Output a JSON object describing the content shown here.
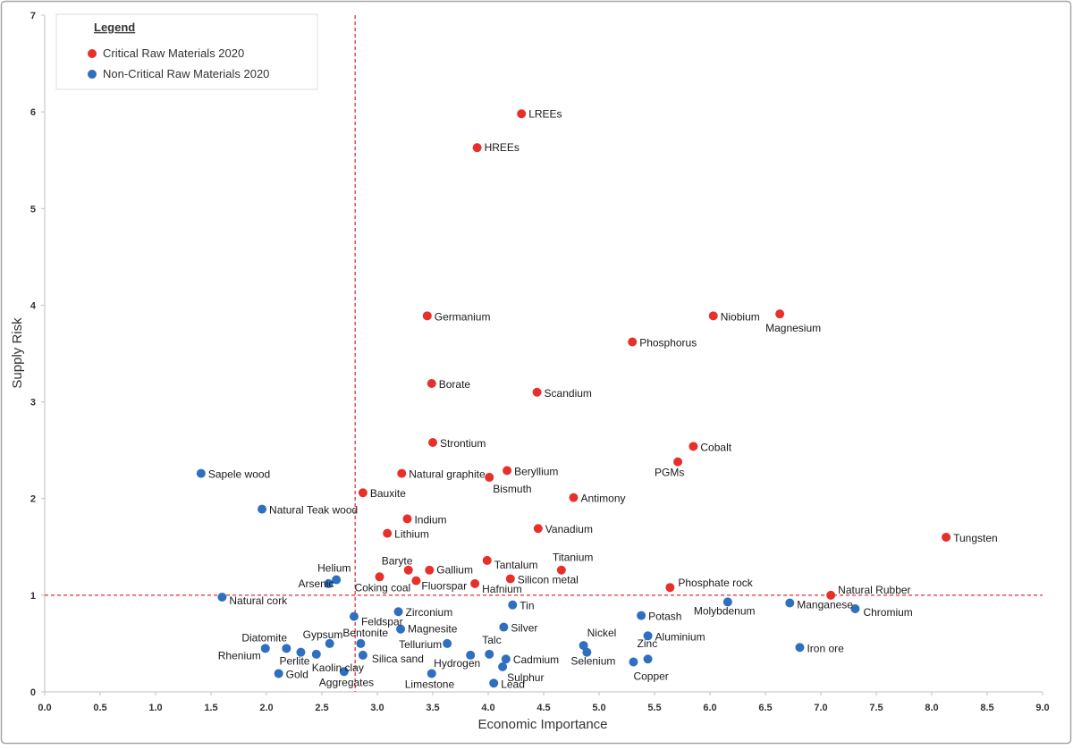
{
  "chart_data": {
    "type": "scatter",
    "title": "",
    "xlabel": "Economic Importance",
    "ylabel": "Supply Risk",
    "xlim": [
      0,
      9
    ],
    "ylim": [
      0,
      7
    ],
    "x_ticks": [
      "0.0",
      "0.5",
      "1.0",
      "1.5",
      "2.0",
      "2.5",
      "3.0",
      "3.5",
      "4.0",
      "4.5",
      "5.0",
      "5.5",
      "6.0",
      "6.5",
      "7.0",
      "7.5",
      "8.0",
      "8.5",
      "9.0"
    ],
    "y_ticks": [
      "0",
      "1",
      "2",
      "3",
      "4",
      "5",
      "6",
      "7"
    ],
    "thresholds": {
      "x": 2.8,
      "y": 1.0
    },
    "legend": {
      "title": "Legend",
      "placement": "top-left",
      "entries": [
        "Critical Raw Materials 2020",
        "Non-Critical Raw Materials 2020"
      ]
    },
    "colors": {
      "critical": "#e8302a",
      "non_critical": "#2e6fbf",
      "threshold": "#e04040",
      "frame": "#a6a6a6"
    },
    "series": [
      {
        "name": "Critical Raw Materials 2020",
        "points": [
          {
            "label": "LREEs",
            "x": 4.3,
            "y": 5.98
          },
          {
            "label": "HREEs",
            "x": 3.9,
            "y": 5.63
          },
          {
            "label": "Germanium",
            "x": 3.45,
            "y": 3.89
          },
          {
            "label": "Niobium",
            "x": 6.03,
            "y": 3.89
          },
          {
            "label": "Magnesium",
            "x": 6.63,
            "y": 3.91
          },
          {
            "label": "Phosphorus",
            "x": 5.3,
            "y": 3.62
          },
          {
            "label": "Borate",
            "x": 3.49,
            "y": 3.19
          },
          {
            "label": "Scandium",
            "x": 4.44,
            "y": 3.1
          },
          {
            "label": "Strontium",
            "x": 3.5,
            "y": 2.58
          },
          {
            "label": "Cobalt",
            "x": 5.85,
            "y": 2.54
          },
          {
            "label": "PGMs",
            "x": 5.71,
            "y": 2.38
          },
          {
            "label": "Beryllium",
            "x": 4.17,
            "y": 2.29
          },
          {
            "label": "Natural graphite",
            "x": 3.22,
            "y": 2.26
          },
          {
            "label": "Bismuth",
            "x": 4.01,
            "y": 2.22
          },
          {
            "label": "Bauxite",
            "x": 2.87,
            "y": 2.06
          },
          {
            "label": "Antimony",
            "x": 4.77,
            "y": 2.01
          },
          {
            "label": "Indium",
            "x": 3.27,
            "y": 1.79
          },
          {
            "label": "Vanadium",
            "x": 4.45,
            "y": 1.69
          },
          {
            "label": "Lithium",
            "x": 3.09,
            "y": 1.64
          },
          {
            "label": "Tungsten",
            "x": 8.13,
            "y": 1.6
          },
          {
            "label": "Tantalum",
            "x": 3.99,
            "y": 1.36
          },
          {
            "label": "Titanium",
            "x": 4.66,
            "y": 1.26
          },
          {
            "label": "Baryte",
            "x": 3.28,
            "y": 1.26
          },
          {
            "label": "Gallium",
            "x": 3.47,
            "y": 1.26
          },
          {
            "label": "Coking coal",
            "x": 3.02,
            "y": 1.19
          },
          {
            "label": "Fluorspar",
            "x": 3.35,
            "y": 1.15
          },
          {
            "label": "Silicon metal",
            "x": 4.2,
            "y": 1.17
          },
          {
            "label": "Hafnium",
            "x": 3.88,
            "y": 1.12
          },
          {
            "label": "Phosphate rock",
            "x": 5.64,
            "y": 1.08
          },
          {
            "label": "Natural Rubber",
            "x": 7.09,
            "y": 1.0
          }
        ]
      },
      {
        "name": "Non-Critical Raw Materials 2020",
        "points": [
          {
            "label": "Sapele wood",
            "x": 1.41,
            "y": 2.26
          },
          {
            "label": "Natural Teak wood",
            "x": 1.96,
            "y": 1.89
          },
          {
            "label": "Helium",
            "x": 2.63,
            "y": 1.16
          },
          {
            "label": "Arsenic",
            "x": 2.56,
            "y": 1.12
          },
          {
            "label": "Natural cork",
            "x": 1.6,
            "y": 0.98
          },
          {
            "label": "Molybdenum",
            "x": 6.16,
            "y": 0.93
          },
          {
            "label": "Manganese",
            "x": 6.72,
            "y": 0.92
          },
          {
            "label": "Chromium",
            "x": 7.31,
            "y": 0.86
          },
          {
            "label": "Tin",
            "x": 4.22,
            "y": 0.9
          },
          {
            "label": "Zirconium",
            "x": 3.19,
            "y": 0.83
          },
          {
            "label": "Feldspar",
            "x": 2.79,
            "y": 0.78
          },
          {
            "label": "Potash",
            "x": 5.38,
            "y": 0.79
          },
          {
            "label": "Silver",
            "x": 4.14,
            "y": 0.67
          },
          {
            "label": "Magnesite",
            "x": 3.21,
            "y": 0.65
          },
          {
            "label": "Aluminium",
            "x": 5.44,
            "y": 0.58
          },
          {
            "label": "Gypsum",
            "x": 2.57,
            "y": 0.5
          },
          {
            "label": "Bentonite",
            "x": 2.85,
            "y": 0.5
          },
          {
            "label": "Diatomite",
            "x": 2.18,
            "y": 0.45
          },
          {
            "label": "Tellurium",
            "x": 3.63,
            "y": 0.5
          },
          {
            "label": "Nickel",
            "x": 4.86,
            "y": 0.48
          },
          {
            "label": "Iron ore",
            "x": 6.81,
            "y": 0.46
          },
          {
            "label": "Rhenium",
            "x": 1.99,
            "y": 0.45
          },
          {
            "label": "Perlite",
            "x": 2.31,
            "y": 0.41
          },
          {
            "label": "Kaolin clay",
            "x": 2.45,
            "y": 0.39
          },
          {
            "label": "Silica sand",
            "x": 2.87,
            "y": 0.38
          },
          {
            "label": "Talc",
            "x": 4.01,
            "y": 0.39
          },
          {
            "label": "Hydrogen",
            "x": 3.84,
            "y": 0.38
          },
          {
            "label": "Selenium",
            "x": 4.89,
            "y": 0.41
          },
          {
            "label": "Cadmium",
            "x": 4.16,
            "y": 0.34
          },
          {
            "label": "Zinc",
            "x": 5.44,
            "y": 0.34
          },
          {
            "label": "Copper",
            "x": 5.31,
            "y": 0.31
          },
          {
            "label": "Sulphur",
            "x": 4.13,
            "y": 0.26
          },
          {
            "label": "Aggregates",
            "x": 2.7,
            "y": 0.21
          },
          {
            "label": "Gold",
            "x": 2.11,
            "y": 0.19
          },
          {
            "label": "Limestone",
            "x": 3.49,
            "y": 0.19
          },
          {
            "label": "Lead",
            "x": 4.05,
            "y": 0.09
          }
        ]
      }
    ]
  }
}
